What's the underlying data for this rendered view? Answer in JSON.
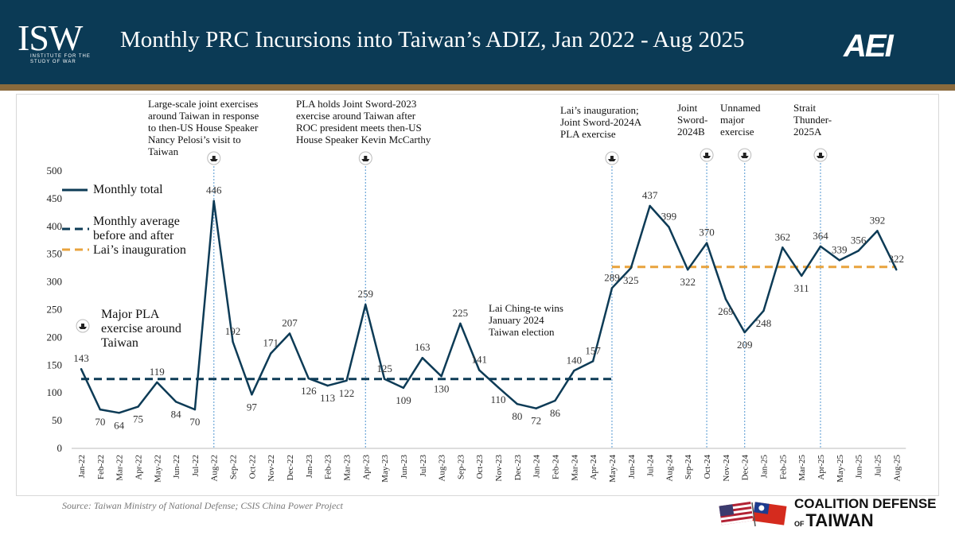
{
  "header": {
    "isw_logo": "ISW",
    "isw_subtitle_1": "INSTITUTE FOR THE",
    "isw_subtitle_2": "STUDY OF WAR",
    "title": "Monthly PRC Incursions into Taiwan’s ADIZ, Jan 2022 - Aug 2025",
    "aei_logo": "AEI"
  },
  "legend": {
    "monthly_total": "Monthly total",
    "avg_line1": "Monthly average",
    "avg_line2": "before and after",
    "avg_line3": "Lai’s inauguration",
    "exercise_line1": "Major PLA",
    "exercise_line2": "exercise around",
    "exercise_line3": "Taiwan"
  },
  "annotations": {
    "a1": [
      "Large-scale joint exercises",
      "around Taiwan in response",
      "to then-US House Speaker",
      "Nancy Pelosi’s  visit to",
      "Taiwan"
    ],
    "a2": [
      "PLA holds Joint Sword-2023",
      "exercise  around Taiwan after",
      "ROC president  meets then-US",
      "House Speaker  Kevin McCarthy"
    ],
    "a3": [
      "Lai’s inauguration;",
      "Joint Sword-2024A",
      "PLA exercise"
    ],
    "a4": [
      "Joint",
      "Sword-",
      "2024B"
    ],
    "a5": [
      "Unnamed",
      "major",
      "exercise"
    ],
    "a6": [
      "Strait",
      "Thunder-",
      "2025A"
    ],
    "a7": [
      "Lai Ching-te wins",
      "January 2024",
      "Taiwan election"
    ]
  },
  "chart_data": {
    "type": "line",
    "title": "Monthly PRC Incursions into Taiwan’s ADIZ, Jan 2022 - Aug 2025",
    "xlabel": "",
    "ylabel": "",
    "ylim": [
      0,
      500
    ],
    "yticks": [
      0,
      50,
      100,
      150,
      200,
      250,
      300,
      350,
      400,
      450,
      500
    ],
    "categories": [
      "Jan-22",
      "Feb-22",
      "Mar-22",
      "Apr-22",
      "May-22",
      "Jun-22",
      "Jul-22",
      "Aug-22",
      "Sep-22",
      "Oct-22",
      "Nov-22",
      "Dec-22",
      "Jan-23",
      "Feb-23",
      "Mar-23",
      "Apr-23",
      "May-23",
      "Jun-23",
      "Jul-23",
      "Aug-23",
      "Sep-23",
      "Oct-23",
      "Nov-23",
      "Dec-23",
      "Jan-24",
      "Feb-24",
      "Mar-24",
      "Apr-24",
      "May-24",
      "Jun-24",
      "Jul-24",
      "Aug-24",
      "Sep-24",
      "Oct-24",
      "Nov-24",
      "Dec-24",
      "Jan-25",
      "Feb-25",
      "Mar-25",
      "Apr-25",
      "May-25",
      "Jun-25",
      "Jul-25",
      "Aug-25"
    ],
    "series": [
      {
        "name": "Monthly total",
        "color": "#0d3b56",
        "values": [
          143,
          70,
          64,
          75,
          119,
          84,
          70,
          446,
          192,
          97,
          171,
          207,
          126,
          113,
          122,
          259,
          125,
          109,
          163,
          130,
          225,
          141,
          110,
          80,
          72,
          86,
          140,
          157,
          289,
          325,
          437,
          399,
          322,
          370,
          269,
          209,
          248,
          362,
          311,
          364,
          339,
          356,
          392,
          322
        ]
      },
      {
        "name": "Monthly average before Lai’s inauguration",
        "color": "#0d3b56",
        "style": "dashed",
        "value": 125,
        "from": "Jan-22",
        "to": "May-24"
      },
      {
        "name": "Monthly average after Lai’s inauguration",
        "color": "#e8a33d",
        "style": "dashed",
        "value": 327,
        "from": "May-24",
        "to": "Aug-25"
      }
    ],
    "exercise_months": [
      "Aug-22",
      "Apr-23",
      "May-24",
      "Oct-24",
      "Dec-24",
      "Apr-25"
    ],
    "label_offsets": [
      "above",
      "below",
      "below",
      "below",
      "above",
      "below",
      "below",
      "above",
      "above",
      "below",
      "above",
      "above",
      "below",
      "below",
      "below",
      "above",
      "above",
      "below",
      "above",
      "below",
      "above",
      "above",
      "below",
      "below",
      "below",
      "below",
      "above",
      "above",
      "above",
      "below",
      "above",
      "above",
      "below",
      "above",
      "below",
      "below",
      "below",
      "above",
      "below",
      "above",
      "above",
      "above",
      "above",
      "above"
    ]
  },
  "footer": {
    "source": "Source: Taiwan Ministry of National Defense; CSIS China Power Project",
    "cdt_line1": "COALITION DEFENSE",
    "cdt_of": "OF",
    "cdt_line2": "TAIWAN"
  }
}
